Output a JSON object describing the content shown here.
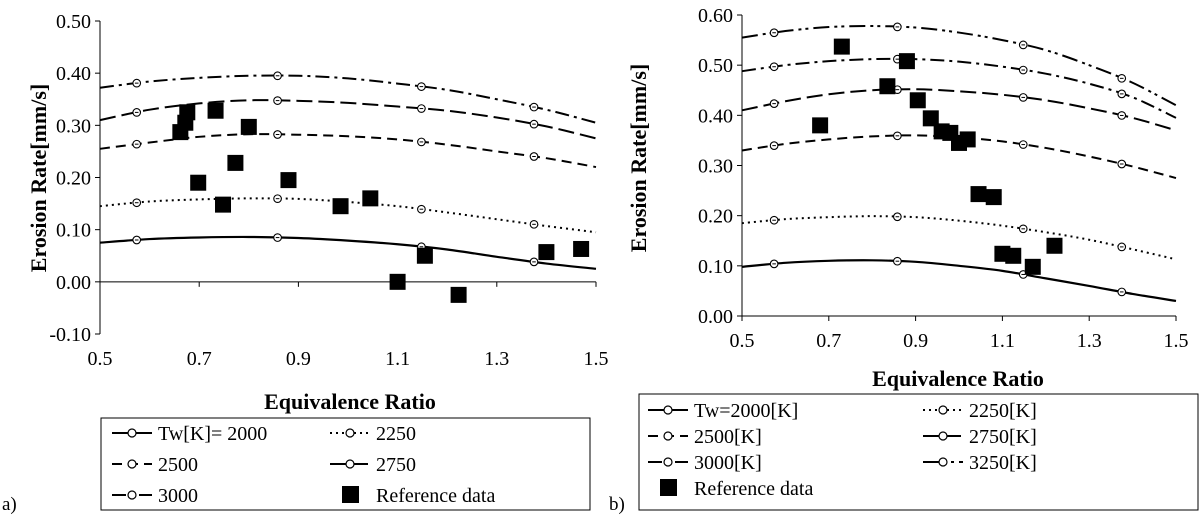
{
  "chart_data": [
    {
      "type": "line",
      "panel_label": "a)",
      "xlabel": "Equivalence Ratio",
      "ylabel": "Erosion Rate[mm/s]",
      "xlim": [
        0.5,
        1.5
      ],
      "ylim": [
        -0.1,
        0.5
      ],
      "xticks": [
        "0.5",
        "0.7",
        "0.9",
        "1.1",
        "1.3",
        "1.5"
      ],
      "yticks": [
        "-0.10",
        "0.00",
        "0.10",
        "0.20",
        "0.30",
        "0.40",
        "0.50"
      ],
      "grid": false,
      "legend_position": "bottom",
      "marker_x": [
        0.574,
        0.858,
        1.148,
        1.375
      ],
      "series": [
        {
          "name": "Tw[K]= 2000",
          "style": "solid",
          "x": [
            0.5,
            0.6,
            0.7,
            0.8,
            0.9,
            1.0,
            1.1,
            1.2,
            1.3,
            1.4,
            1.5
          ],
          "values": [
            0.075,
            0.082,
            0.085,
            0.086,
            0.084,
            0.079,
            0.072,
            0.062,
            0.048,
            0.035,
            0.025
          ]
        },
        {
          "name": "2250",
          "style": "dotted",
          "x": [
            0.5,
            0.6,
            0.7,
            0.8,
            0.9,
            1.0,
            1.1,
            1.2,
            1.3,
            1.4,
            1.5
          ],
          "values": [
            0.145,
            0.154,
            0.158,
            0.16,
            0.159,
            0.153,
            0.145,
            0.133,
            0.12,
            0.107,
            0.095
          ]
        },
        {
          "name": "2500",
          "style": "dashed",
          "x": [
            0.5,
            0.6,
            0.7,
            0.8,
            0.9,
            1.0,
            1.1,
            1.2,
            1.3,
            1.4,
            1.5
          ],
          "values": [
            0.255,
            0.267,
            0.278,
            0.283,
            0.282,
            0.279,
            0.273,
            0.263,
            0.25,
            0.237,
            0.22
          ]
        },
        {
          "name": "2750",
          "style": "longdash",
          "x": [
            0.5,
            0.6,
            0.7,
            0.8,
            0.9,
            1.0,
            1.1,
            1.2,
            1.3,
            1.4,
            1.5
          ],
          "values": [
            0.31,
            0.33,
            0.342,
            0.348,
            0.347,
            0.343,
            0.336,
            0.328,
            0.315,
            0.298,
            0.275
          ]
        },
        {
          "name": "3000",
          "style": "dashdot",
          "x": [
            0.5,
            0.6,
            0.7,
            0.8,
            0.9,
            1.0,
            1.1,
            1.2,
            1.3,
            1.4,
            1.5
          ],
          "values": [
            0.372,
            0.384,
            0.391,
            0.395,
            0.395,
            0.39,
            0.38,
            0.368,
            0.35,
            0.33,
            0.305
          ]
        }
      ],
      "reference": {
        "name": "Reference data",
        "x": [
          0.662,
          0.672,
          0.676,
          0.698,
          0.733,
          0.748,
          0.773,
          0.8,
          0.88,
          0.985,
          1.045,
          1.1,
          1.155,
          1.223,
          1.4,
          1.47
        ],
        "values": [
          0.287,
          0.305,
          0.325,
          0.19,
          0.328,
          0.148,
          0.228,
          0.297,
          0.195,
          0.145,
          0.16,
          0.0,
          0.05,
          -0.025,
          0.057,
          0.063
        ]
      }
    },
    {
      "type": "line",
      "panel_label": "b)",
      "xlabel": "Equivalence Ratio",
      "ylabel": "Erosion Rate[mm/s]",
      "xlim": [
        0.5,
        1.5
      ],
      "ylim": [
        0.0,
        0.6
      ],
      "xticks": [
        "0.5",
        "0.7",
        "0.9",
        "1.1",
        "1.3",
        "1.5"
      ],
      "yticks": [
        "0.00",
        "0.10",
        "0.20",
        "0.30",
        "0.40",
        "0.50",
        "0.60"
      ],
      "grid": false,
      "legend_position": "bottom",
      "marker_x": [
        0.574,
        0.858,
        1.148,
        1.375
      ],
      "series": [
        {
          "name": "Tw=2000[K]",
          "style": "solid",
          "x": [
            0.5,
            0.6,
            0.7,
            0.8,
            0.9,
            1.0,
            1.1,
            1.2,
            1.3,
            1.4,
            1.5
          ],
          "values": [
            0.098,
            0.106,
            0.11,
            0.111,
            0.108,
            0.1,
            0.09,
            0.075,
            0.06,
            0.044,
            0.03
          ]
        },
        {
          "name": "2250[K]",
          "style": "dotted",
          "x": [
            0.5,
            0.6,
            0.7,
            0.8,
            0.9,
            1.0,
            1.1,
            1.2,
            1.3,
            1.4,
            1.5
          ],
          "values": [
            0.185,
            0.193,
            0.197,
            0.199,
            0.197,
            0.19,
            0.18,
            0.167,
            0.152,
            0.133,
            0.113
          ]
        },
        {
          "name": "2500[K]",
          "style": "dashed",
          "x": [
            0.5,
            0.6,
            0.7,
            0.8,
            0.9,
            1.0,
            1.1,
            1.2,
            1.3,
            1.4,
            1.5
          ],
          "values": [
            0.33,
            0.343,
            0.352,
            0.358,
            0.36,
            0.356,
            0.348,
            0.335,
            0.318,
            0.298,
            0.275
          ]
        },
        {
          "name": "2750[K]",
          "style": "longdash",
          "x": [
            0.5,
            0.6,
            0.7,
            0.8,
            0.9,
            1.0,
            1.1,
            1.2,
            1.3,
            1.4,
            1.5
          ],
          "values": [
            0.41,
            0.428,
            0.442,
            0.45,
            0.452,
            0.448,
            0.441,
            0.43,
            0.414,
            0.395,
            0.37
          ]
        },
        {
          "name": "3000[K]",
          "style": "dashdot",
          "x": [
            0.5,
            0.6,
            0.7,
            0.8,
            0.9,
            1.0,
            1.1,
            1.2,
            1.3,
            1.4,
            1.5
          ],
          "values": [
            0.488,
            0.5,
            0.508,
            0.512,
            0.512,
            0.507,
            0.497,
            0.483,
            0.463,
            0.436,
            0.395
          ]
        },
        {
          "name": "3250[K]",
          "style": "dashdotdot",
          "x": [
            0.5,
            0.6,
            0.7,
            0.8,
            0.9,
            1.0,
            1.1,
            1.2,
            1.3,
            1.4,
            1.5
          ],
          "values": [
            0.555,
            0.568,
            0.576,
            0.578,
            0.575,
            0.565,
            0.55,
            0.53,
            0.5,
            0.465,
            0.42
          ]
        }
      ],
      "reference": {
        "name": "Reference data",
        "x": [
          0.68,
          0.73,
          0.835,
          0.88,
          0.905,
          0.935,
          0.96,
          0.98,
          1.0,
          1.02,
          1.045,
          1.08,
          1.1,
          1.125,
          1.17,
          1.22
        ],
        "values": [
          0.38,
          0.537,
          0.458,
          0.508,
          0.43,
          0.394,
          0.368,
          0.365,
          0.345,
          0.352,
          0.243,
          0.237,
          0.124,
          0.12,
          0.098,
          0.14
        ]
      }
    }
  ]
}
